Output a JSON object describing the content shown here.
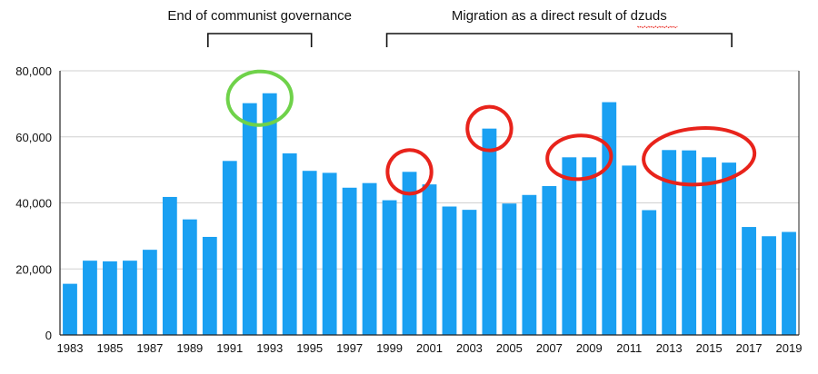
{
  "chart_data": {
    "type": "bar",
    "title": "",
    "xlabel": "",
    "ylabel": "",
    "ylim": [
      0,
      80000
    ],
    "grid": true,
    "bar_color": "#1aa0f2",
    "categories": [
      "1983",
      "1984",
      "1985",
      "1986",
      "1987",
      "1988",
      "1989",
      "1990",
      "1991",
      "1992",
      "1993",
      "1994",
      "1995",
      "1996",
      "1997",
      "1998",
      "1999",
      "2000",
      "2001",
      "2002",
      "2003",
      "2004",
      "2005",
      "2006",
      "2007",
      "2008",
      "2009",
      "2010",
      "2011",
      "2012",
      "2013",
      "2014",
      "2015",
      "2016",
      "2017",
      "2018",
      "2019"
    ],
    "values": [
      15500,
      22500,
      22300,
      22500,
      25800,
      41800,
      35000,
      29700,
      52700,
      70200,
      73200,
      55000,
      49700,
      49100,
      44600,
      46000,
      40800,
      49400,
      45600,
      38900,
      37900,
      62500,
      39800,
      42400,
      45100,
      53800,
      53800,
      70500,
      51300,
      37800,
      56000,
      55900,
      53800,
      52200,
      32700,
      29900,
      31200
    ],
    "x_tick_labels": [
      "1983",
      "1985",
      "1987",
      "1989",
      "1991",
      "1993",
      "1995",
      "1997",
      "1999",
      "2001",
      "2003",
      "2005",
      "2007",
      "2009",
      "2011",
      "2013",
      "2015",
      "2017",
      "2019"
    ],
    "y_ticks": [
      {
        "value": 0,
        "label": "0"
      },
      {
        "value": 20000,
        "label": "20,000"
      },
      {
        "value": 40000,
        "label": "40,000"
      },
      {
        "value": 60000,
        "label": "60,000"
      },
      {
        "value": 80000,
        "label": "80,000"
      }
    ],
    "annotations": [
      {
        "label": "End of communist governance",
        "from": "1990",
        "to": "1995"
      },
      {
        "label": "Migration as a direct result of dzuds",
        "from": "1999",
        "to": "2016"
      }
    ],
    "highlight_circles": [
      {
        "center": "1992.5",
        "categories": [
          "1992",
          "1993"
        ],
        "color": "#6fd24a"
      },
      {
        "center": "2000",
        "categories": [
          "2000"
        ],
        "color": "#e8231b"
      },
      {
        "center": "2004",
        "categories": [
          "2004"
        ],
        "color": "#e8231b"
      },
      {
        "center": "2009",
        "categories": [
          "2008",
          "2009"
        ],
        "color": "#e8231b"
      },
      {
        "center": "2015",
        "categories": [
          "2013",
          "2014",
          "2015",
          "2016"
        ],
        "color": "#e8231b"
      }
    ]
  }
}
